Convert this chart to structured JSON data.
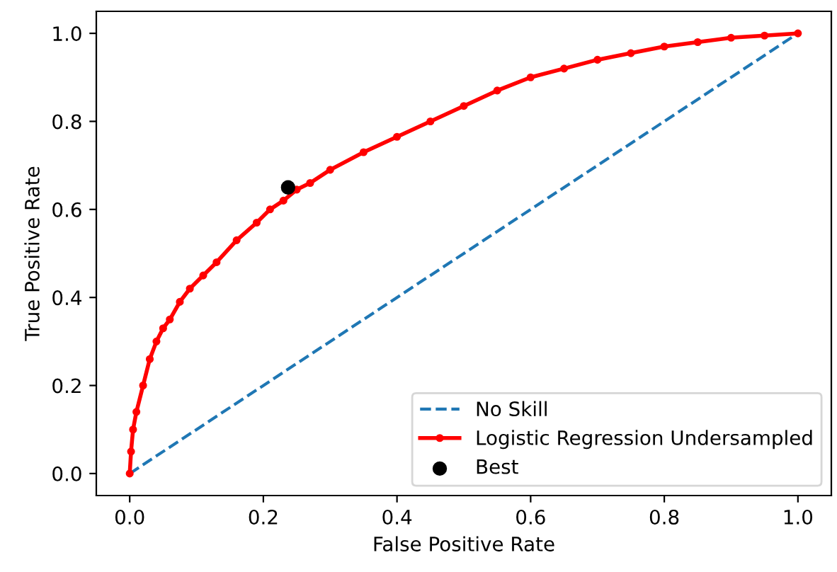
{
  "chart_data": {
    "type": "line",
    "xlabel": "False Positive Rate",
    "ylabel": "True Positive Rate",
    "xlim": [
      -0.05,
      1.05
    ],
    "ylim": [
      -0.05,
      1.05
    ],
    "xticks": [
      {
        "value": 0,
        "label": "0.0"
      },
      {
        "value": 0.2,
        "label": "0.2"
      },
      {
        "value": 0.4,
        "label": "0.4"
      },
      {
        "value": 0.6,
        "label": "0.6"
      },
      {
        "value": 0.8,
        "label": "0.8"
      },
      {
        "value": 1,
        "label": "1.0"
      }
    ],
    "yticks": [
      {
        "value": 0,
        "label": "0.0"
      },
      {
        "value": 0.2,
        "label": "0.2"
      },
      {
        "value": 0.4,
        "label": "0.4"
      },
      {
        "value": 0.6,
        "label": "0.6"
      },
      {
        "value": 0.8,
        "label": "0.8"
      },
      {
        "value": 1,
        "label": "1.0"
      }
    ],
    "grid": false,
    "legend": "bottom right",
    "series": [
      {
        "name": "No Skill",
        "color": "#1f77b4",
        "line_style": "dashed",
        "marker": "none",
        "x": [
          0,
          1
        ],
        "values": [
          0,
          1
        ]
      },
      {
        "name": "Logistic Regression Undersampled",
        "color": "#ff0000",
        "line_style": "solid",
        "marker": "circle",
        "x": [
          0,
          0.002,
          0.005,
          0.01,
          0.02,
          0.03,
          0.04,
          0.05,
          0.06,
          0.075,
          0.09,
          0.11,
          0.13,
          0.16,
          0.19,
          0.21,
          0.23,
          0.25,
          0.27,
          0.3,
          0.35,
          0.4,
          0.45,
          0.5,
          0.55,
          0.6,
          0.65,
          0.7,
          0.75,
          0.8,
          0.85,
          0.9,
          0.95,
          1
        ],
        "values": [
          0,
          0.05,
          0.1,
          0.14,
          0.2,
          0.26,
          0.3,
          0.33,
          0.35,
          0.39,
          0.42,
          0.45,
          0.48,
          0.53,
          0.57,
          0.6,
          0.62,
          0.645,
          0.66,
          0.69,
          0.73,
          0.765,
          0.8,
          0.835,
          0.87,
          0.9,
          0.92,
          0.94,
          0.955,
          0.97,
          0.98,
          0.99,
          0.995,
          1
        ]
      },
      {
        "name": "Best",
        "type": "scatter",
        "color": "#000000",
        "marker": "circle",
        "x": [
          0.237
        ],
        "values": [
          0.65
        ]
      }
    ]
  }
}
